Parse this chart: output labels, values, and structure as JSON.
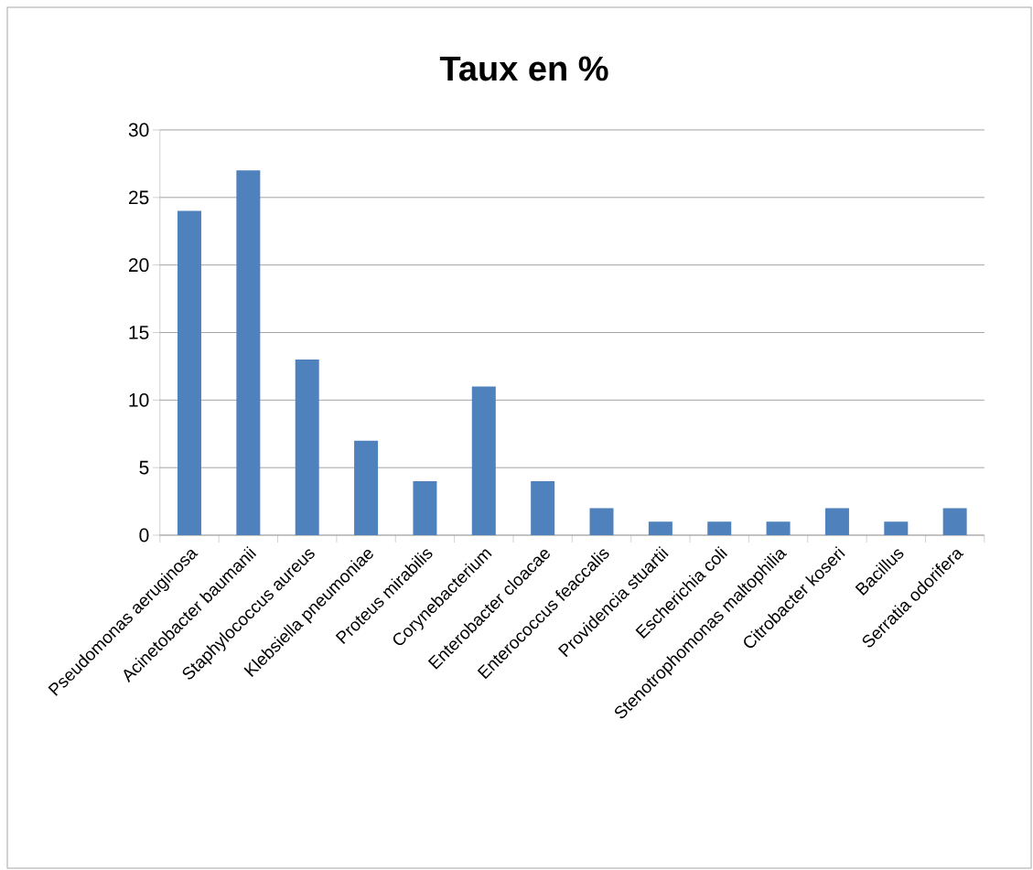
{
  "chart_data": {
    "type": "bar",
    "title": "Taux en %",
    "categories": [
      "Pseudomonas aeruginosa",
      "Acinetobacter baumanii",
      "Staphylococcus aureus",
      "Klebsiella pneumoniae",
      "Proteus mirabilis",
      "Corynebacterium",
      "Enterobacter cloacae",
      "Enterococcus feaccalis",
      "Providencia stuartii",
      "Escherichia coli",
      "Stenotrophomonas maltophilia",
      "Citrobacter koseri",
      "Bacillus",
      "Serratia odorifera"
    ],
    "values": [
      24,
      27,
      13,
      7,
      4,
      11,
      4,
      2,
      1,
      1,
      1,
      2,
      1,
      2
    ],
    "color": "#4f81bd",
    "ylim": [
      0,
      30
    ],
    "yticks": [
      0,
      5,
      10,
      15,
      20,
      25,
      30
    ],
    "grid": "y"
  }
}
